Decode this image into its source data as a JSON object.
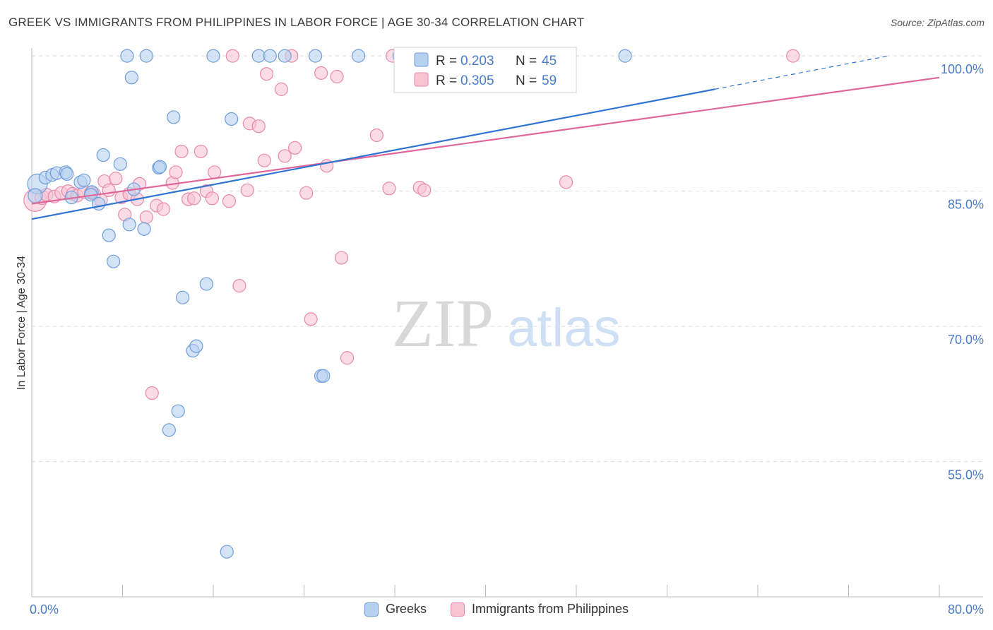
{
  "title": "GREEK VS IMMIGRANTS FROM PHILIPPINES IN LABOR FORCE | AGE 30-34 CORRELATION CHART",
  "source": "Source: ZipAtlas.com",
  "watermark": {
    "part1": "ZIP",
    "part2": "atlas"
  },
  "colors": {
    "blue_fill": "#b8d0f0",
    "blue_stroke": "#6e9fdc",
    "blue_line": "#2e74d0",
    "pink_fill": "#f8c3d3",
    "pink_stroke": "#e98aa8",
    "pink_line": "#e0669a",
    "axis_label": "#4a7cc7",
    "grid": "#dcdcdc"
  },
  "legend": {
    "r_label": "R =",
    "n_label": "N =",
    "rows": [
      {
        "series": "Greeks",
        "r": "0.203",
        "n": "45"
      },
      {
        "series": "Immigrants from Philippines",
        "r": "0.305",
        "n": "59"
      }
    ]
  },
  "chart_data": {
    "type": "scatter",
    "ylabel": "In Labor Force | Age 30-34",
    "xlabel": "",
    "xlim": [
      0,
      80
    ],
    "ylim": [
      40,
      101.5
    ],
    "y_ticks": [
      55,
      70,
      85,
      100
    ],
    "y_tick_labels": [
      "55.0%",
      "70.0%",
      "85.0%",
      "100.0%"
    ],
    "x_tick_labels": [
      "0.0%",
      "80.0%"
    ],
    "x_minor_ticks": [
      8,
      16,
      24,
      32,
      40,
      48,
      56,
      64,
      72,
      80
    ],
    "grid": true,
    "legend_position": "top-center",
    "series": [
      {
        "name": "Greeks",
        "color": "blue",
        "trend": {
          "x0": 0,
          "y0": 81.9,
          "x1": 60.2,
          "y1": 96.3,
          "dash_x1": 75.5,
          "dash_y1": 100
        },
        "points": [
          [
            0.5,
            85.8,
            14
          ],
          [
            0.3,
            84.5,
            10
          ],
          [
            1.2,
            86.5,
            9
          ],
          [
            1.8,
            86.8,
            9
          ],
          [
            2.2,
            87.0,
            9
          ],
          [
            3.0,
            87.1,
            9
          ],
          [
            3.1,
            86.9,
            9
          ],
          [
            3.5,
            84.3,
            9
          ],
          [
            4.3,
            86.0,
            9
          ],
          [
            4.6,
            86.2,
            9
          ],
          [
            5.3,
            84.9,
            9
          ],
          [
            5.2,
            84.6,
            9
          ],
          [
            5.9,
            83.6,
            9
          ],
          [
            6.3,
            89.0,
            9
          ],
          [
            6.8,
            80.1,
            9
          ],
          [
            7.2,
            77.2,
            9
          ],
          [
            7.8,
            88.0,
            9
          ],
          [
            8.4,
            100.0,
            9
          ],
          [
            8.8,
            97.6,
            9
          ],
          [
            8.6,
            81.3,
            9
          ],
          [
            9.0,
            85.2,
            9
          ],
          [
            10.1,
            100.0,
            9
          ],
          [
            9.9,
            80.8,
            9
          ],
          [
            11.2,
            87.6,
            9
          ],
          [
            11.3,
            87.7,
            9
          ],
          [
            12.5,
            93.2,
            9
          ],
          [
            13.3,
            73.2,
            9
          ],
          [
            16.0,
            100.0,
            9
          ],
          [
            15.4,
            74.7,
            9
          ],
          [
            14.2,
            67.3,
            9
          ],
          [
            14.5,
            67.8,
            9
          ],
          [
            12.9,
            60.6,
            9
          ],
          [
            12.1,
            58.5,
            9
          ],
          [
            17.2,
            45.0,
            9
          ],
          [
            17.6,
            93.0,
            9
          ],
          [
            20.0,
            100.0,
            9
          ],
          [
            21.0,
            100.0,
            9
          ],
          [
            22.3,
            100.0,
            9
          ],
          [
            25.0,
            100.0,
            9
          ],
          [
            25.5,
            64.5,
            9
          ],
          [
            25.7,
            64.5,
            9
          ],
          [
            28.8,
            100.0,
            9
          ],
          [
            32.4,
            100.0,
            9
          ],
          [
            43.8,
            100.0,
            9
          ],
          [
            52.3,
            100.0,
            9
          ]
        ]
      },
      {
        "name": "Immigrants from Philippines",
        "color": "pink",
        "trend": {
          "x0": 0,
          "y0": 83.6,
          "x1": 80,
          "y1": 97.6
        },
        "points": [
          [
            0.3,
            84.0,
            16
          ],
          [
            0.9,
            84.3,
            10
          ],
          [
            1.3,
            84.6,
            9
          ],
          [
            2.0,
            84.4,
            9
          ],
          [
            2.6,
            84.8,
            9
          ],
          [
            3.2,
            85.0,
            9
          ],
          [
            3.6,
            84.7,
            9
          ],
          [
            4.0,
            84.5,
            9
          ],
          [
            4.6,
            84.9,
            9
          ],
          [
            5.2,
            84.8,
            9
          ],
          [
            5.5,
            84.7,
            9
          ],
          [
            6.1,
            84.0,
            9
          ],
          [
            6.4,
            86.1,
            9
          ],
          [
            6.8,
            85.1,
            9
          ],
          [
            7.4,
            86.4,
            9
          ],
          [
            7.9,
            84.3,
            9
          ],
          [
            8.2,
            82.4,
            9
          ],
          [
            8.6,
            84.7,
            9
          ],
          [
            9.3,
            84.1,
            9
          ],
          [
            9.5,
            85.8,
            9
          ],
          [
            10.1,
            82.1,
            9
          ],
          [
            11.0,
            83.4,
            9
          ],
          [
            11.6,
            83.0,
            9
          ],
          [
            12.4,
            85.9,
            9
          ],
          [
            12.7,
            87.1,
            9
          ],
          [
            13.2,
            89.4,
            9
          ],
          [
            13.8,
            84.1,
            9
          ],
          [
            14.3,
            84.2,
            9
          ],
          [
            14.9,
            89.4,
            9
          ],
          [
            15.4,
            85.0,
            9
          ],
          [
            15.9,
            84.2,
            9
          ],
          [
            16.1,
            87.1,
            9
          ],
          [
            17.4,
            83.9,
            9
          ],
          [
            17.7,
            100.0,
            9
          ],
          [
            18.3,
            74.5,
            9
          ],
          [
            19.0,
            85.1,
            9
          ],
          [
            19.2,
            92.5,
            9
          ],
          [
            20.0,
            92.2,
            9
          ],
          [
            20.5,
            88.4,
            9
          ],
          [
            20.7,
            98.0,
            9
          ],
          [
            22.0,
            96.3,
            9
          ],
          [
            22.3,
            88.9,
            9
          ],
          [
            22.9,
            100.0,
            9
          ],
          [
            23.2,
            89.8,
            9
          ],
          [
            24.2,
            84.8,
            9
          ],
          [
            24.6,
            70.8,
            9
          ],
          [
            25.5,
            98.1,
            9
          ],
          [
            26.0,
            87.8,
            9
          ],
          [
            26.9,
            97.7,
            9
          ],
          [
            27.3,
            77.6,
            9
          ],
          [
            27.8,
            66.5,
            9
          ],
          [
            30.4,
            91.2,
            9
          ],
          [
            31.5,
            85.3,
            9
          ],
          [
            31.8,
            100.0,
            9
          ],
          [
            34.2,
            85.4,
            9
          ],
          [
            34.6,
            85.1,
            9
          ],
          [
            47.1,
            86.0,
            9
          ],
          [
            67.1,
            100.0,
            9
          ],
          [
            10.6,
            62.6,
            9
          ]
        ]
      }
    ]
  }
}
